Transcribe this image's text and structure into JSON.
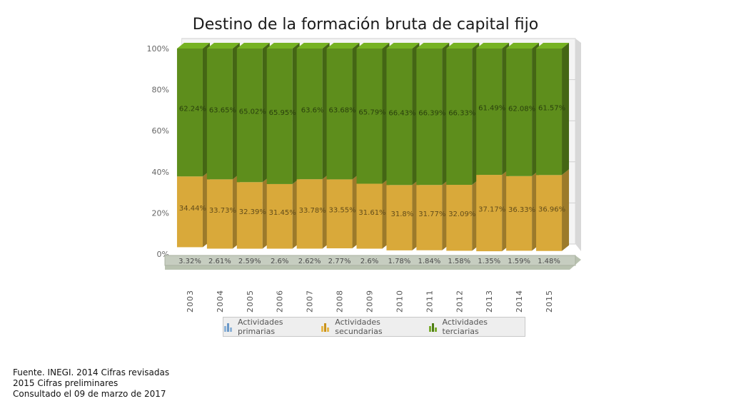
{
  "source": {
    "line1": "Fuente. INEGI. 2014 Cifras revisadas",
    "line2": "2015 Cifras preliminares",
    "line3": "Consultado el 09 de marzo de 2017"
  },
  "chart_data": {
    "type": "bar",
    "stacked": true,
    "percent_stacked": true,
    "title": "Destino de la formación bruta de capital fijo",
    "categories": [
      "2003",
      "2004",
      "2005",
      "2006",
      "2007",
      "2008",
      "2009",
      "2010",
      "2011",
      "2012",
      "2013",
      "2014",
      "2015"
    ],
    "series": [
      {
        "name": "Actividades primarias",
        "color": "#8fb4d8",
        "values": [
          3.32,
          2.61,
          2.59,
          2.6,
          2.62,
          2.77,
          2.6,
          1.78,
          1.84,
          1.58,
          1.35,
          1.59,
          1.48
        ],
        "labels": [
          "3.32%",
          "2.61%",
          "2.59%",
          "2.6%",
          "2.62%",
          "2.77%",
          "2.6%",
          "1.78%",
          "1.84%",
          "1.58%",
          "1.35%",
          "1.59%",
          "1.48%"
        ]
      },
      {
        "name": "Actividades secundarias",
        "color": "#d9a93a",
        "values": [
          34.44,
          33.73,
          32.39,
          31.45,
          33.78,
          33.55,
          31.61,
          31.8,
          31.77,
          32.09,
          37.17,
          36.33,
          36.96
        ],
        "labels": [
          "34.44%",
          "33.73%",
          "32.39%",
          "31.45%",
          "33.78%",
          "33.55%",
          "31.61%",
          "31.8%",
          "31.77%",
          "32.09%",
          "37.17%",
          "36.33%",
          "36.96%"
        ]
      },
      {
        "name": "Actividades terciarias",
        "color": "#5e8e1c",
        "values": [
          62.24,
          63.65,
          65.02,
          65.95,
          63.6,
          63.68,
          65.79,
          66.43,
          66.39,
          66.33,
          61.49,
          62.08,
          61.57
        ],
        "labels": [
          "62.24%",
          "63.65%",
          "65.02%",
          "65.95%",
          "63.6%",
          "63.68%",
          "65.79%",
          "66.43%",
          "66.39%",
          "66.33%",
          "61.49%",
          "62.08%",
          "61.57%"
        ]
      }
    ],
    "ylim": [
      0,
      100
    ],
    "yticks": [
      "0%",
      "20%",
      "40%",
      "60%",
      "80%",
      "100%"
    ],
    "grid": true,
    "legend": "bottom"
  }
}
